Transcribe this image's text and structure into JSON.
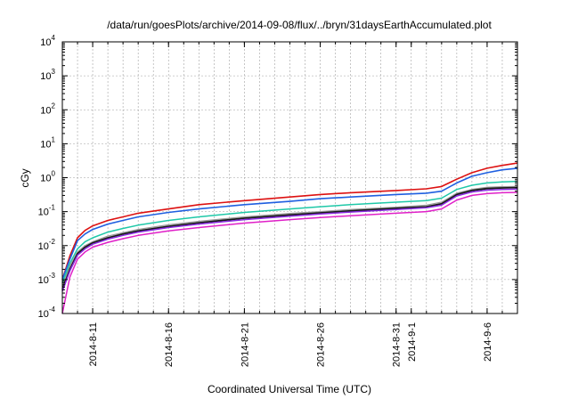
{
  "chart_data": {
    "type": "line",
    "title": "/data/run/goesPlots/archive/2014-09-08/flux/../bryn/31daysEarthAccumulated.plot",
    "xlabel": "Coordinated Universal Time (UTC)",
    "ylabel": "cGy",
    "yscale": "log",
    "ylim": [
      0.0001,
      10000
    ],
    "y_ticks": [
      {
        "value": 0.0001,
        "base": "10",
        "exp": "-4"
      },
      {
        "value": 0.001,
        "base": "10",
        "exp": "-3"
      },
      {
        "value": 0.01,
        "base": "10",
        "exp": "-2"
      },
      {
        "value": 0.1,
        "base": "10",
        "exp": "-1"
      },
      {
        "value": 1,
        "base": "10",
        "exp": "0"
      },
      {
        "value": 10,
        "base": "10",
        "exp": "1"
      },
      {
        "value": 100,
        "base": "10",
        "exp": "2"
      },
      {
        "value": 1000,
        "base": "10",
        "exp": "3"
      },
      {
        "value": 10000,
        "base": "10",
        "exp": "4"
      }
    ],
    "xlim": [
      "2014-08-09",
      "2014-09-08"
    ],
    "x_ticks": [
      {
        "date": "2014-08-11",
        "label": "2014-8-11"
      },
      {
        "date": "2014-08-16",
        "label": "2014-8-16"
      },
      {
        "date": "2014-08-21",
        "label": "2014-8-21"
      },
      {
        "date": "2014-08-26",
        "label": "2014-8-26"
      },
      {
        "date": "2014-08-31",
        "label": "2014-8-31"
      },
      {
        "date": "2014-09-01",
        "label": "2014-9-1"
      },
      {
        "date": "2014-09-06",
        "label": "2014-9-6"
      }
    ],
    "grid": true,
    "series": [
      {
        "color": "#dd1111",
        "width": 1.6,
        "x": [
          "2014-08-09",
          "2014-08-09T12:00",
          "2014-08-10",
          "2014-08-10T12:00",
          "2014-08-11",
          "2014-08-12",
          "2014-08-13",
          "2014-08-14",
          "2014-08-16",
          "2014-08-18",
          "2014-08-21",
          "2014-08-24",
          "2014-08-26",
          "2014-08-28",
          "2014-08-31",
          "2014-09-02",
          "2014-09-03",
          "2014-09-04",
          "2014-09-05",
          "2014-09-06",
          "2014-09-07",
          "2014-09-08"
        ],
        "y": [
          0.001,
          0.005,
          0.017,
          0.028,
          0.038,
          0.055,
          0.07,
          0.09,
          0.12,
          0.16,
          0.21,
          0.27,
          0.32,
          0.36,
          0.42,
          0.47,
          0.55,
          0.9,
          1.4,
          1.9,
          2.3,
          2.7
        ]
      },
      {
        "color": "#1f5fe0",
        "width": 1.6,
        "x": [
          "2014-08-09",
          "2014-08-09T12:00",
          "2014-08-10",
          "2014-08-10T12:00",
          "2014-08-11",
          "2014-08-12",
          "2014-08-13",
          "2014-08-14",
          "2014-08-16",
          "2014-08-18",
          "2014-08-21",
          "2014-08-24",
          "2014-08-26",
          "2014-08-28",
          "2014-08-31",
          "2014-09-02",
          "2014-09-03",
          "2014-09-04",
          "2014-09-05",
          "2014-09-06",
          "2014-09-07",
          "2014-09-08"
        ],
        "y": [
          0.001,
          0.004,
          0.014,
          0.022,
          0.03,
          0.043,
          0.055,
          0.07,
          0.095,
          0.12,
          0.16,
          0.2,
          0.24,
          0.27,
          0.32,
          0.35,
          0.4,
          0.7,
          1.1,
          1.4,
          1.7,
          1.9
        ]
      },
      {
        "color": "#1ec8a8",
        "width": 1.5,
        "x": [
          "2014-08-09",
          "2014-08-09T12:00",
          "2014-08-10",
          "2014-08-10T12:00",
          "2014-08-11",
          "2014-08-12",
          "2014-08-13",
          "2014-08-14",
          "2014-08-16",
          "2014-08-18",
          "2014-08-21",
          "2014-08-24",
          "2014-08-26",
          "2014-08-28",
          "2014-08-31",
          "2014-09-02",
          "2014-09-03",
          "2014-09-04",
          "2014-09-05",
          "2014-09-06",
          "2014-09-07",
          "2014-09-08"
        ],
        "y": [
          0.0008,
          0.003,
          0.008,
          0.013,
          0.017,
          0.025,
          0.032,
          0.04,
          0.055,
          0.07,
          0.095,
          0.12,
          0.14,
          0.16,
          0.19,
          0.21,
          0.25,
          0.45,
          0.6,
          0.7,
          0.75,
          0.78
        ]
      },
      {
        "color": "#999999",
        "width": 1.3,
        "x": [
          "2014-08-09",
          "2014-08-09T12:00",
          "2014-08-10",
          "2014-08-10T12:00",
          "2014-08-11",
          "2014-08-12",
          "2014-08-13",
          "2014-08-14",
          "2014-08-16",
          "2014-08-18",
          "2014-08-21",
          "2014-08-24",
          "2014-08-26",
          "2014-08-28",
          "2014-08-31",
          "2014-09-02",
          "2014-09-03",
          "2014-09-04",
          "2014-09-05",
          "2014-09-06",
          "2014-09-07",
          "2014-09-08"
        ],
        "y": [
          0.0006,
          0.0025,
          0.0065,
          0.01,
          0.013,
          0.019,
          0.024,
          0.03,
          0.041,
          0.052,
          0.07,
          0.088,
          0.1,
          0.115,
          0.135,
          0.155,
          0.19,
          0.35,
          0.45,
          0.52,
          0.54,
          0.55
        ]
      },
      {
        "color": "#1a1a1a",
        "width": 1.8,
        "x": [
          "2014-08-09",
          "2014-08-09T12:00",
          "2014-08-10",
          "2014-08-10T12:00",
          "2014-08-11",
          "2014-08-12",
          "2014-08-13",
          "2014-08-14",
          "2014-08-16",
          "2014-08-18",
          "2014-08-21",
          "2014-08-24",
          "2014-08-26",
          "2014-08-28",
          "2014-08-31",
          "2014-09-02",
          "2014-09-03",
          "2014-09-04",
          "2014-09-05",
          "2014-09-06",
          "2014-09-07",
          "2014-09-08"
        ],
        "y": [
          0.0005,
          0.002,
          0.0058,
          0.009,
          0.012,
          0.017,
          0.022,
          0.027,
          0.037,
          0.047,
          0.064,
          0.08,
          0.092,
          0.105,
          0.125,
          0.14,
          0.17,
          0.32,
          0.42,
          0.48,
          0.5,
          0.51
        ]
      },
      {
        "color": "#8a2be2",
        "width": 1.5,
        "x": [
          "2014-08-09",
          "2014-08-09T12:00",
          "2014-08-10",
          "2014-08-10T12:00",
          "2014-08-11",
          "2014-08-12",
          "2014-08-13",
          "2014-08-14",
          "2014-08-16",
          "2014-08-18",
          "2014-08-21",
          "2014-08-24",
          "2014-08-26",
          "2014-08-28",
          "2014-08-31",
          "2014-09-02",
          "2014-09-03",
          "2014-09-04",
          "2014-09-05",
          "2014-09-06",
          "2014-09-07",
          "2014-09-08"
        ],
        "y": [
          0.00045,
          0.0018,
          0.0052,
          0.008,
          0.011,
          0.0155,
          0.02,
          0.025,
          0.034,
          0.043,
          0.058,
          0.073,
          0.085,
          0.097,
          0.115,
          0.13,
          0.155,
          0.29,
          0.38,
          0.43,
          0.45,
          0.46
        ]
      },
      {
        "color": "#e020c8",
        "width": 1.5,
        "x": [
          "2014-08-09",
          "2014-08-09T12:00",
          "2014-08-10",
          "2014-08-10T12:00",
          "2014-08-11",
          "2014-08-12",
          "2014-08-13",
          "2014-08-14",
          "2014-08-16",
          "2014-08-18",
          "2014-08-21",
          "2014-08-24",
          "2014-08-26",
          "2014-08-28",
          "2014-08-31",
          "2014-09-02",
          "2014-09-03",
          "2014-09-04",
          "2014-09-05",
          "2014-09-06",
          "2014-09-07",
          "2014-09-08"
        ],
        "y": [
          0.0001,
          0.0012,
          0.004,
          0.0065,
          0.009,
          0.0125,
          0.016,
          0.02,
          0.027,
          0.034,
          0.046,
          0.058,
          0.067,
          0.076,
          0.09,
          0.1,
          0.12,
          0.22,
          0.3,
          0.34,
          0.36,
          0.37
        ]
      }
    ]
  }
}
